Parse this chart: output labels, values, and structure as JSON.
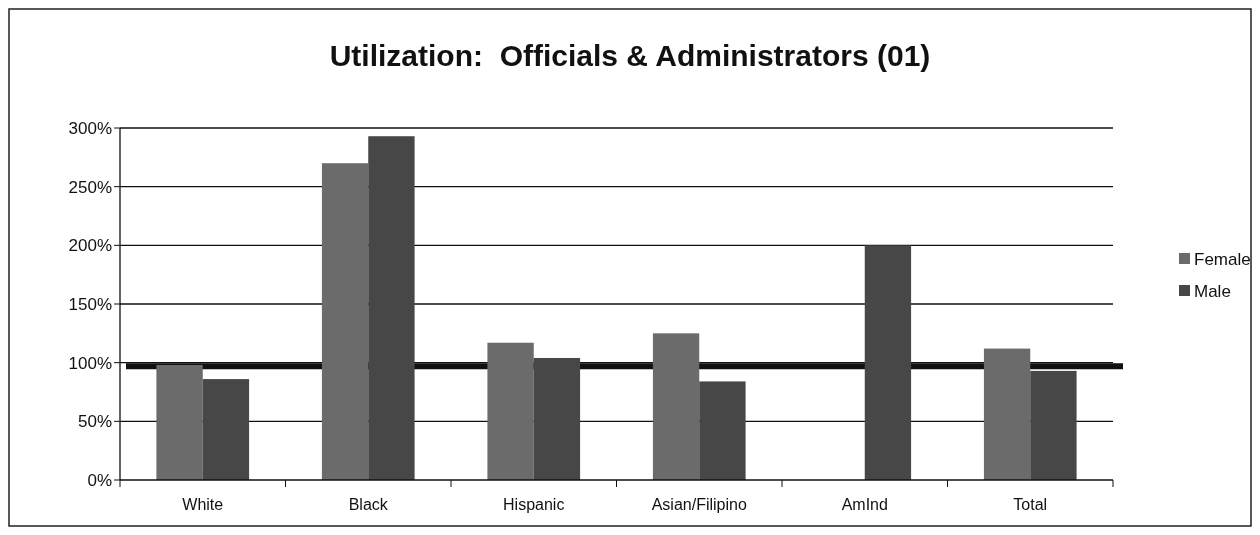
{
  "chart_data": {
    "type": "bar",
    "title": "Utilization:  Officials & Administrators (01)",
    "categories": [
      "White",
      "Black",
      "Hispanic",
      "Asian/Filipino",
      "AmInd",
      "Total"
    ],
    "series": [
      {
        "name": "Female",
        "color": "#6b6b6b",
        "values": [
          98,
          270,
          117,
          125,
          null,
          112
        ]
      },
      {
        "name": "Male",
        "color": "#474747",
        "values": [
          86,
          293,
          104,
          84,
          200,
          93
        ]
      }
    ],
    "ylim": [
      0,
      300
    ],
    "yticks": [
      {
        "value": 0,
        "label": "0%"
      },
      {
        "value": 50,
        "label": "50%"
      },
      {
        "value": 100,
        "label": "100%"
      },
      {
        "value": 150,
        "label": "150%"
      },
      {
        "value": 200,
        "label": "200%"
      },
      {
        "value": 250,
        "label": "250%"
      },
      {
        "value": 300,
        "label": "300%"
      }
    ],
    "grid": "y",
    "legend": "right",
    "ref_lines": [
      {
        "axis": "y",
        "value": 97,
        "color": "#111111"
      }
    ]
  }
}
